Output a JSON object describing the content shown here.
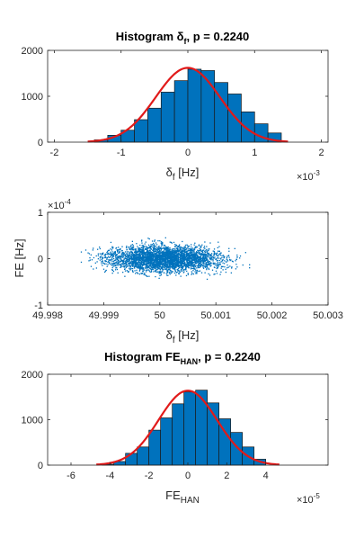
{
  "colors": {
    "bar": "#0072BD",
    "bar_edge": "#1a1a1a",
    "fit": "#e11a1a",
    "scatter": "#0072BD",
    "axis": "#262626"
  },
  "chart_data": [
    {
      "type": "bar",
      "title": {
        "main": "Histogram δ",
        "sub": "f",
        "rest": ", p = 0.2240"
      },
      "xlabel": {
        "main": "δ",
        "sub": "f",
        "rest": " [Hz]"
      },
      "ylabel": "",
      "x_multiplier": {
        "base": "×10",
        "exp": "-3"
      },
      "xlim": [
        -2.1,
        2.1
      ],
      "ylim": [
        0,
        2000
      ],
      "xticks": [
        -2,
        -1,
        0,
        1,
        2
      ],
      "xtick_labels": [
        "-2",
        "-1",
        "0",
        "1",
        "2"
      ],
      "yticks": [
        0,
        1000,
        2000
      ],
      "ytick_labels": [
        "0",
        "1000",
        "2000"
      ],
      "bin_edges": [
        -1.4,
        -1.2,
        -1.0,
        -0.8,
        -0.6,
        -0.4,
        -0.2,
        0.0,
        0.2,
        0.4,
        0.6,
        0.8,
        1.0,
        1.2,
        1.4
      ],
      "values": [
        50,
        150,
        260,
        490,
        740,
        1090,
        1340,
        1590,
        1560,
        1300,
        1050,
        660,
        400,
        200
      ],
      "fit_curve": {
        "type": "normal",
        "mu": 0.0,
        "sigma": 0.48,
        "peak": 1620,
        "range": [
          -1.5,
          1.5
        ]
      }
    },
    {
      "type": "scatter",
      "title": "",
      "xlabel": {
        "main": "δ",
        "sub": "f",
        "rest": " [Hz]"
      },
      "ylabel": "FE [Hz]",
      "y_multiplier": {
        "base": "×10",
        "exp": "-4"
      },
      "xlim": [
        49.998,
        50.003
      ],
      "ylim": [
        -1,
        1
      ],
      "xticks": [
        49.998,
        49.999,
        50,
        50.001,
        50.002,
        50.003
      ],
      "xtick_labels": [
        "49.998",
        "49.999",
        "50",
        "50.001",
        "50.002",
        "50.003"
      ],
      "yticks": [
        -1,
        0,
        1
      ],
      "ytick_labels": [
        "-1",
        "0",
        "1"
      ],
      "cloud": {
        "x_center": 50.0001,
        "x_sd": 0.0005,
        "x_range": [
          49.9986,
          50.0016
        ],
        "y_center": 0.0,
        "y_sd": 0.14,
        "y_range": [
          -0.65,
          0.6
        ],
        "n_points": 3500
      }
    },
    {
      "type": "bar",
      "title": {
        "main": "Histogram FE",
        "sub": "HAN",
        "rest": ", p = 0.2240"
      },
      "xlabel": {
        "main": "FE",
        "sub": "HAN",
        "rest": ""
      },
      "ylabel": "",
      "x_multiplier": {
        "base": "×10",
        "exp": "-5"
      },
      "xlim": [
        -7.2,
        7.2
      ],
      "ylim": [
        0,
        2000
      ],
      "xticks": [
        -6,
        -4,
        -2,
        0,
        2,
        4
      ],
      "xtick_labels": [
        "-6",
        "-4",
        "-2",
        "0",
        "2",
        "4"
      ],
      "yticks": [
        0,
        1000,
        2000
      ],
      "ytick_labels": [
        "0",
        "1000",
        "2000"
      ],
      "bin_edges": [
        -4.4,
        -3.8,
        -3.2,
        -2.6,
        -2.0,
        -1.4,
        -0.8,
        -0.2,
        0.4,
        1.0,
        1.6,
        2.2,
        2.8,
        3.4,
        4.0
      ],
      "values": [
        20,
        80,
        260,
        400,
        770,
        1040,
        1350,
        1610,
        1650,
        1370,
        1020,
        720,
        400,
        130
      ],
      "fit_curve": {
        "type": "normal",
        "mu": 0.0,
        "sigma": 1.5,
        "peak": 1640,
        "range": [
          -4.7,
          4.7
        ]
      }
    }
  ]
}
